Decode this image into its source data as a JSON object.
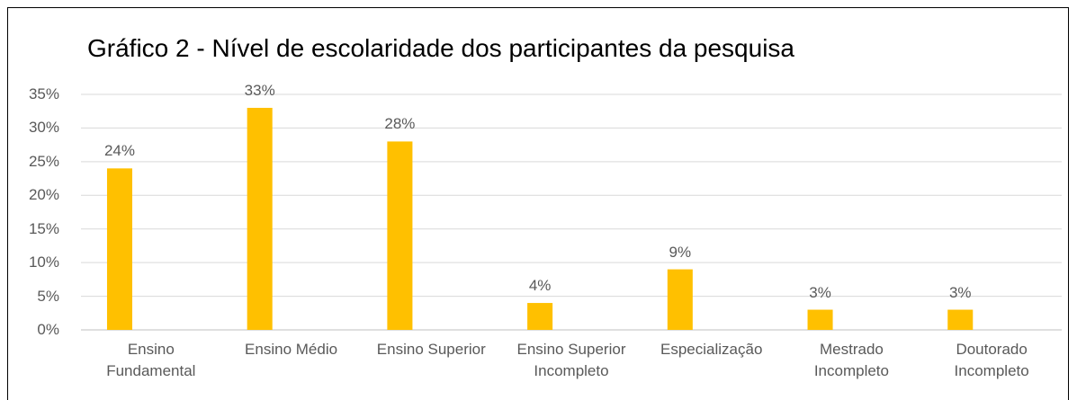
{
  "chart_data": {
    "type": "bar",
    "title": "Gráfico 2 - Nível de escolaridade dos participantes da pesquisa",
    "categories": [
      "Ensino Fundamental",
      "Ensino Médio",
      "Ensino Superior",
      "Ensino Superior Incompleto",
      "Especialização",
      "Mestrado Incompleto",
      "Doutorado Incompleto"
    ],
    "values": [
      24,
      33,
      28,
      4,
      9,
      3,
      3
    ],
    "value_labels": [
      "24%",
      "33%",
      "28%",
      "4%",
      "9%",
      "3%",
      "3%"
    ],
    "color": "#ffc000",
    "ylim": [
      0,
      35
    ],
    "yticks": [
      {
        "value": 0,
        "label": "0%"
      },
      {
        "value": 5,
        "label": "5%"
      },
      {
        "value": 10,
        "label": "10%"
      },
      {
        "value": 15,
        "label": "15%"
      },
      {
        "value": 20,
        "label": "20%"
      },
      {
        "value": 25,
        "label": "25%"
      },
      {
        "value": 30,
        "label": "30%"
      },
      {
        "value": 35,
        "label": "35%"
      }
    ],
    "grid": true
  }
}
